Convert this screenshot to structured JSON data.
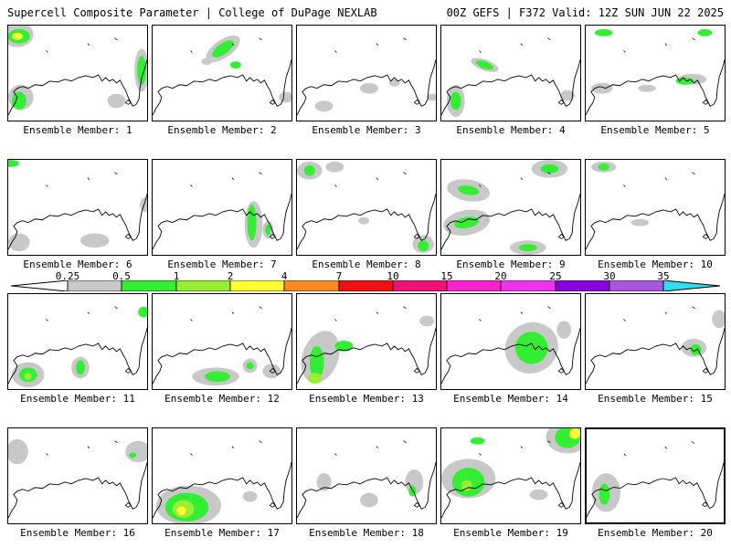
{
  "header": {
    "left": "Supercell Composite Parameter | College of DuPage NEXLAB",
    "right": "00Z GEFS | F372 Valid: 12Z SUN JUN 22 2025"
  },
  "colors": {
    "c025": "#c8c8c8",
    "c05": "#33ee33",
    "c1": "#99ee33",
    "c2": "#ffff33",
    "c4": "#ff8822",
    "c7": "#ee1111",
    "c10": "#ee1177",
    "c15": "#ff22cc",
    "c20": "#ee33ee",
    "c25": "#8800dd",
    "c30": "#aa55dd",
    "c35": "#33ddee"
  },
  "colorbar": {
    "ticks": [
      "0.25",
      "0.5",
      "1",
      "2",
      "4",
      "7",
      "10",
      "15",
      "20",
      "25",
      "30",
      "35"
    ]
  },
  "members": [
    {
      "label": "Ensemble Member: 1"
    },
    {
      "label": "Ensemble Member: 2"
    },
    {
      "label": "Ensemble Member: 3"
    },
    {
      "label": "Ensemble Member: 4"
    },
    {
      "label": "Ensemble Member: 5"
    },
    {
      "label": "Ensemble Member: 6"
    },
    {
      "label": "Ensemble Member: 7"
    },
    {
      "label": "Ensemble Member: 8"
    },
    {
      "label": "Ensemble Member: 9"
    },
    {
      "label": "Ensemble Member: 10"
    },
    {
      "label": "Ensemble Member: 11"
    },
    {
      "label": "Ensemble Member: 12"
    },
    {
      "label": "Ensemble Member: 13"
    },
    {
      "label": "Ensemble Member: 14"
    },
    {
      "label": "Ensemble Member: 15"
    },
    {
      "label": "Ensemble Member: 16"
    },
    {
      "label": "Ensemble Member: 17"
    },
    {
      "label": "Ensemble Member: 18"
    },
    {
      "label": "Ensemble Member: 19"
    },
    {
      "label": "Ensemble Member: 20"
    }
  ]
}
